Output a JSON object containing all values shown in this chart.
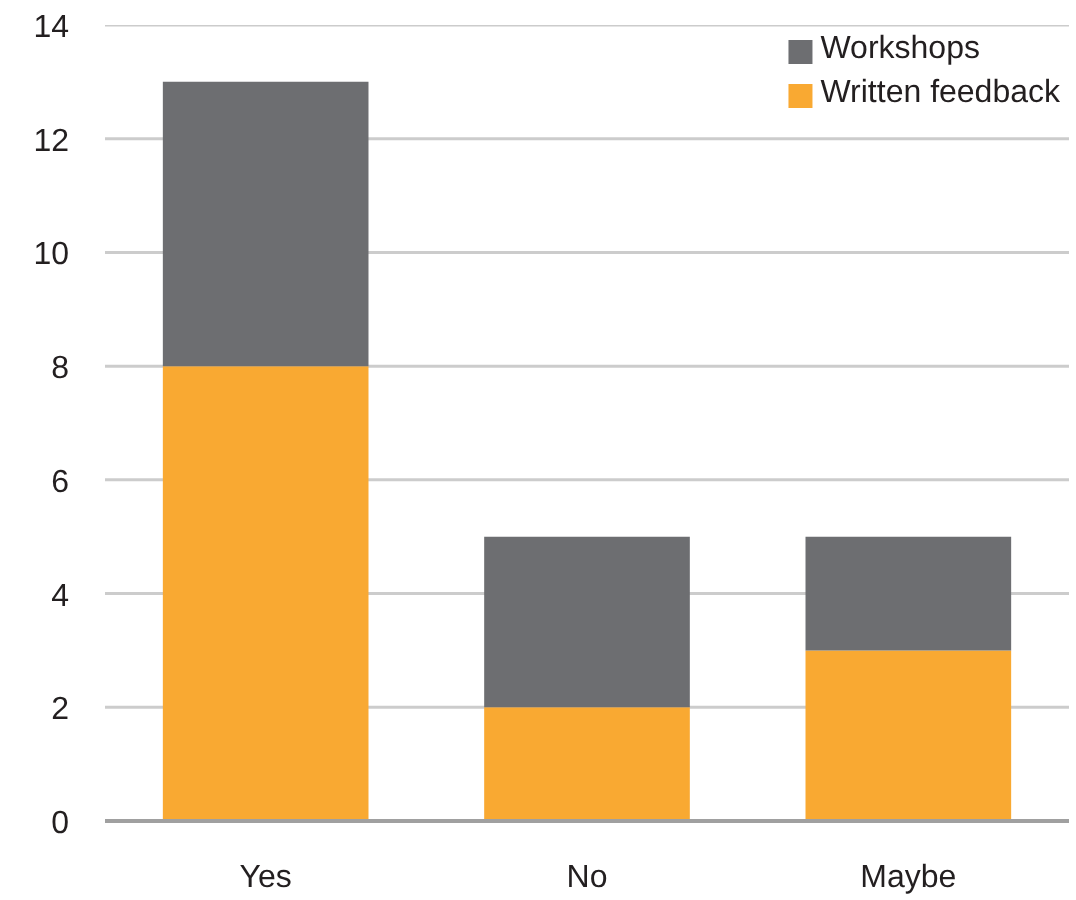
{
  "chart_data": {
    "type": "bar",
    "stacked": true,
    "categories": [
      "Yes",
      "No",
      "Maybe"
    ],
    "series": [
      {
        "name": "Written feedback",
        "color": "#f9a932",
        "values": [
          8,
          2,
          3
        ]
      },
      {
        "name": "Workshops",
        "color": "#6d6e71",
        "values": [
          5,
          3,
          2
        ]
      }
    ],
    "ylim": [
      0,
      14
    ],
    "yticks": [
      0,
      2,
      4,
      6,
      8,
      10,
      12,
      14
    ],
    "grid": "y",
    "legend": "top right"
  }
}
